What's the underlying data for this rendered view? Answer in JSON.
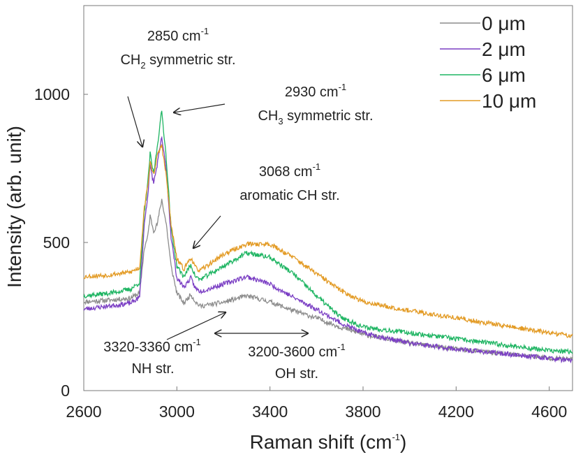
{
  "chart_data": {
    "type": "line",
    "xlabel": "Raman shift (cm",
    "xlabel_sup": "-1",
    "xlabel_tail": ")",
    "ylabel": "Intensity (arb. unit)",
    "xlim": [
      2600,
      4700
    ],
    "ylim": [
      0,
      1300
    ],
    "xticks": [
      2600,
      3000,
      3400,
      3800,
      4200,
      4600
    ],
    "yticks": [
      0,
      500,
      1000
    ],
    "grid": false,
    "legend_position": "top-right",
    "series": [
      {
        "name": "0 μm",
        "color": "#8c8c8c",
        "noise": 8,
        "seed": 11,
        "points": [
          [
            2600,
            300
          ],
          [
            2700,
            305
          ],
          [
            2800,
            312
          ],
          [
            2840,
            330
          ],
          [
            2860,
            480
          ],
          [
            2875,
            520
          ],
          [
            2885,
            590
          ],
          [
            2900,
            540
          ],
          [
            2915,
            560
          ],
          [
            2935,
            645
          ],
          [
            2955,
            560
          ],
          [
            2975,
            420
          ],
          [
            3000,
            330
          ],
          [
            3030,
            295
          ],
          [
            3060,
            325
          ],
          [
            3080,
            300
          ],
          [
            3100,
            285
          ],
          [
            3200,
            298
          ],
          [
            3300,
            320
          ],
          [
            3400,
            300
          ],
          [
            3500,
            270
          ],
          [
            3600,
            245
          ],
          [
            3700,
            215
          ],
          [
            3800,
            190
          ],
          [
            4000,
            160
          ],
          [
            4200,
            140
          ],
          [
            4400,
            125
          ],
          [
            4600,
            110
          ],
          [
            4700,
            105
          ]
        ]
      },
      {
        "name": "2 μm",
        "color": "#7b3fc4",
        "noise": 8,
        "seed": 23,
        "points": [
          [
            2600,
            275
          ],
          [
            2700,
            285
          ],
          [
            2800,
            295
          ],
          [
            2840,
            315
          ],
          [
            2860,
            560
          ],
          [
            2875,
            660
          ],
          [
            2885,
            760
          ],
          [
            2900,
            700
          ],
          [
            2915,
            760
          ],
          [
            2935,
            855
          ],
          [
            2955,
            740
          ],
          [
            2975,
            520
          ],
          [
            3000,
            380
          ],
          [
            3030,
            350
          ],
          [
            3060,
            380
          ],
          [
            3080,
            345
          ],
          [
            3100,
            335
          ],
          [
            3200,
            360
          ],
          [
            3300,
            385
          ],
          [
            3400,
            360
          ],
          [
            3500,
            315
          ],
          [
            3600,
            275
          ],
          [
            3700,
            230
          ],
          [
            3800,
            195
          ],
          [
            4000,
            160
          ],
          [
            4200,
            140
          ],
          [
            4400,
            125
          ],
          [
            4600,
            110
          ],
          [
            4700,
            100
          ]
        ]
      },
      {
        "name": "6 μm",
        "color": "#1fb563",
        "noise": 8,
        "seed": 37,
        "points": [
          [
            2600,
            320
          ],
          [
            2700,
            328
          ],
          [
            2800,
            342
          ],
          [
            2840,
            365
          ],
          [
            2860,
            600
          ],
          [
            2875,
            700
          ],
          [
            2885,
            800
          ],
          [
            2900,
            730
          ],
          [
            2915,
            820
          ],
          [
            2935,
            945
          ],
          [
            2955,
            780
          ],
          [
            2975,
            550
          ],
          [
            3000,
            420
          ],
          [
            3030,
            385
          ],
          [
            3060,
            425
          ],
          [
            3080,
            385
          ],
          [
            3100,
            375
          ],
          [
            3200,
            420
          ],
          [
            3300,
            465
          ],
          [
            3400,
            450
          ],
          [
            3500,
            395
          ],
          [
            3600,
            320
          ],
          [
            3700,
            250
          ],
          [
            3800,
            215
          ],
          [
            4000,
            195
          ],
          [
            4200,
            175
          ],
          [
            4400,
            155
          ],
          [
            4600,
            135
          ],
          [
            4700,
            130
          ]
        ]
      },
      {
        "name": "10 μm",
        "color": "#e39b25",
        "noise": 8,
        "seed": 53,
        "points": [
          [
            2600,
            385
          ],
          [
            2700,
            390
          ],
          [
            2800,
            400
          ],
          [
            2840,
            415
          ],
          [
            2860,
            620
          ],
          [
            2875,
            690
          ],
          [
            2885,
            770
          ],
          [
            2900,
            730
          ],
          [
            2915,
            790
          ],
          [
            2935,
            830
          ],
          [
            2955,
            720
          ],
          [
            2975,
            560
          ],
          [
            3000,
            445
          ],
          [
            3030,
            410
          ],
          [
            3060,
            450
          ],
          [
            3080,
            415
          ],
          [
            3100,
            405
          ],
          [
            3200,
            460
          ],
          [
            3300,
            495
          ],
          [
            3400,
            495
          ],
          [
            3500,
            450
          ],
          [
            3600,
            395
          ],
          [
            3700,
            340
          ],
          [
            3800,
            300
          ],
          [
            4000,
            270
          ],
          [
            4200,
            245
          ],
          [
            4400,
            220
          ],
          [
            4600,
            195
          ],
          [
            4700,
            185
          ]
        ]
      }
    ],
    "annotations": [
      {
        "line1": "2850 cm",
        "line1_sup": "-1",
        "line2_pre": "CH",
        "line2_sub": "2",
        "line2_post": " symmetric str."
      },
      {
        "line1": "2930 cm",
        "line1_sup": "-1",
        "line2_pre": "CH",
        "line2_sub": "3",
        "line2_post": " symmetric str."
      },
      {
        "line1": "3068 cm",
        "line1_sup": "-1",
        "line2_pre": "aromatic CH str.",
        "line2_sub": "",
        "line2_post": ""
      },
      {
        "line1": "3320-3360 cm",
        "line1_sup": "-1",
        "line2_pre": "NH str.",
        "line2_sub": "",
        "line2_post": ""
      },
      {
        "line1": "3200-3600 cm",
        "line1_sup": "-1",
        "line2_pre": "OH str.",
        "line2_sub": "",
        "line2_post": ""
      }
    ]
  }
}
